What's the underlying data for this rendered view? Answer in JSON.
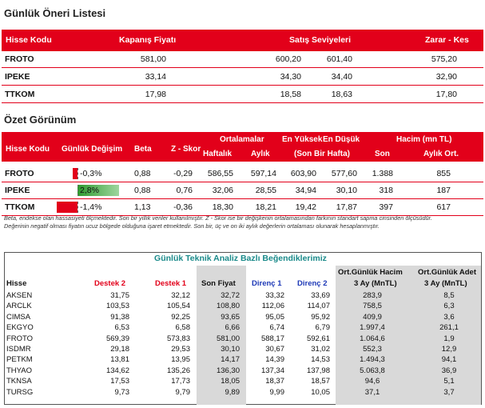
{
  "section1": {
    "title": "Günlük Öneri Listesi",
    "headers": {
      "stock": "Hisse Kodu",
      "close": "Kapanış Fiyatı",
      "sell": "Satış Seviyeleri",
      "stop": "Zarar - Kes"
    },
    "rows": [
      {
        "code": "FROTO",
        "close": "581,00",
        "sell1": "600,20",
        "sell2": "601,40",
        "stop": "575,20"
      },
      {
        "code": "IPEKE",
        "close": "33,14",
        "sell1": "34,30",
        "sell2": "34,40",
        "stop": "32,90"
      },
      {
        "code": "TTKOM",
        "close": "17,98",
        "sell1": "18,58",
        "sell2": "18,63",
        "stop": "17,80"
      }
    ]
  },
  "section2": {
    "title": "Özet Görünüm",
    "headers": {
      "stock": "Hisse Kodu",
      "daily": "Günlük Değişim",
      "beta": "Beta",
      "z": "Z - Skor",
      "avg": "Ortalamalar",
      "weekly": "Haftalık",
      "monthly": "Aylık",
      "high": "En Yüksek",
      "low": "En Düşük",
      "range": "(Son Bir Hafta)",
      "vol": "Hacim (mn TL)",
      "last": "Son",
      "mavg": "Aylık Ort."
    },
    "rows": [
      {
        "code": "FROTO",
        "change": "-0,3%",
        "change_value": -0.3,
        "beta": "0,88",
        "z": "-0,29",
        "weekly": "586,55",
        "monthly": "597,14",
        "high": "603,90",
        "low": "577,60",
        "last": "1.388",
        "mavg": "855"
      },
      {
        "code": "IPEKE",
        "change": "2,8%",
        "change_value": 2.8,
        "beta": "0,88",
        "z": "0,76",
        "weekly": "32,06",
        "monthly": "28,55",
        "high": "34,94",
        "low": "30,10",
        "last": "318",
        "mavg": "187"
      },
      {
        "code": "TTKOM",
        "change": "-1,4%",
        "change_value": -1.4,
        "beta": "1,13",
        "z": "-0,36",
        "weekly": "18,30",
        "monthly": "18,21",
        "high": "19,42",
        "low": "17,87",
        "last": "397",
        "mavg": "617"
      }
    ],
    "notes": [
      "Beta, endekse olan hassasiyeti ölçmektedir. Son bir yıllık veriler kullanılmıştır. Z - Skor ise bir değişkenin ortalamasından farkının standart sapma cinsinden ölçüsüdür.",
      "Değerinin negatif olması fiyatın ucuz bölgede olduğuna işaret etmektedir. Son bir, üç ve on iki aylık değerlerin ortalaması olunarak hesaplanmıştır."
    ],
    "colors": {
      "negative_bar": "#e2001a",
      "positive_bar": "#5cb85c"
    }
  },
  "section3": {
    "title": "Günlük Teknik Analiz Bazlı Beğendiklerimiz",
    "headers": {
      "stock": "Hisse",
      "s2": "Destek 2",
      "s1": "Destek 1",
      "last": "Son Fiyat",
      "r1": "Direnç 1",
      "r2": "Direnç 2",
      "vol_top": "Ort.Günlük Hacim",
      "vol_bottom": "3 Ay (MnTL)",
      "cnt_top": "Ort.Günlük Adet",
      "cnt_bottom": "3 Ay (MnTL)"
    },
    "rows": [
      {
        "code": "AKSEN",
        "s2": "31,75",
        "s1": "32,12",
        "last": "32,72",
        "r1": "33,32",
        "r2": "33,69",
        "vol": "283,9",
        "cnt": "8,5"
      },
      {
        "code": "ARCLK",
        "s2": "103,53",
        "s1": "105,54",
        "last": "108,80",
        "r1": "112,06",
        "r2": "114,07",
        "vol": "758,5",
        "cnt": "6,3"
      },
      {
        "code": "CIMSA",
        "s2": "91,38",
        "s1": "92,25",
        "last": "93,65",
        "r1": "95,05",
        "r2": "95,92",
        "vol": "409,9",
        "cnt": "3,6"
      },
      {
        "code": "EKGYO",
        "s2": "6,53",
        "s1": "6,58",
        "last": "6,66",
        "r1": "6,74",
        "r2": "6,79",
        "vol": "1.997,4",
        "cnt": "261,1"
      },
      {
        "code": "FROTO",
        "s2": "569,39",
        "s1": "573,83",
        "last": "581,00",
        "r1": "588,17",
        "r2": "592,61",
        "vol": "1.064,6",
        "cnt": "1,9"
      },
      {
        "code": "ISDMR",
        "s2": "29,18",
        "s1": "29,53",
        "last": "30,10",
        "r1": "30,67",
        "r2": "31,02",
        "vol": "552,3",
        "cnt": "12,9"
      },
      {
        "code": "PETKM",
        "s2": "13,81",
        "s1": "13,95",
        "last": "14,17",
        "r1": "14,39",
        "r2": "14,53",
        "vol": "1.494,3",
        "cnt": "94,1"
      },
      {
        "code": "THYAO",
        "s2": "134,62",
        "s1": "135,26",
        "last": "136,30",
        "r1": "137,34",
        "r2": "137,98",
        "vol": "5.063,8",
        "cnt": "36,9"
      },
      {
        "code": "TKNSA",
        "s2": "17,53",
        "s1": "17,73",
        "last": "18,05",
        "r1": "18,37",
        "r2": "18,57",
        "vol": "94,6",
        "cnt": "5,1"
      },
      {
        "code": "TURSG",
        "s2": "9,73",
        "s1": "9,79",
        "last": "9,89",
        "r1": "9,99",
        "r2": "10,05",
        "vol": "37,1",
        "cnt": "3,7"
      }
    ]
  }
}
